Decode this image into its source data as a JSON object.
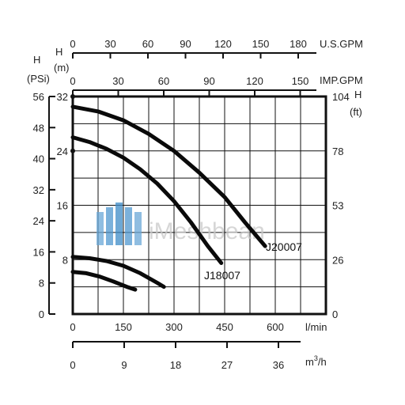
{
  "chart_data": {
    "type": "line",
    "xlabel": "l/min",
    "x_ticks": [
      "0",
      "150",
      "300",
      "450",
      "600"
    ],
    "xlim": [
      0,
      750
    ],
    "ylim_m": [
      0,
      32
    ],
    "secondary_x_axes": [
      {
        "unit": "m3/h",
        "ticks": [
          "0",
          "9",
          "18",
          "27",
          "36"
        ]
      },
      {
        "unit": "U.S.GPM",
        "ticks": [
          "0",
          "30",
          "60",
          "90",
          "120",
          "150",
          "180"
        ]
      },
      {
        "unit": "IMP.GPM",
        "ticks": [
          "0",
          "30",
          "60",
          "90",
          "120",
          "150"
        ]
      }
    ],
    "left_axes": [
      {
        "title_top": "H",
        "title_bottom": "(PSi)",
        "ticks": [
          "0",
          "8",
          "16",
          "24",
          "32",
          "40",
          "48",
          "56"
        ]
      },
      {
        "title_top": "H",
        "title_bottom": "(m)",
        "ticks": [
          "8",
          "16",
          "24",
          "32"
        ]
      }
    ],
    "right_axis": {
      "title_top": "H",
      "title_bottom": "(ft)",
      "ticks": [
        "0",
        "26",
        "53",
        "78",
        "104"
      ]
    },
    "grid": true,
    "series": [
      {
        "name": "J20007",
        "x": [
          0,
          75,
          150,
          225,
          300,
          375,
          450,
          510,
          570
        ],
        "y": [
          30.5,
          29.8,
          28.5,
          26.5,
          24,
          20.8,
          17.2,
          13.5,
          10
        ]
      },
      {
        "name": "J18007",
        "x": [
          0,
          50,
          100,
          150,
          200,
          250,
          300,
          350,
          400,
          440
        ],
        "y": [
          26,
          25.3,
          24.3,
          23,
          21.3,
          19.2,
          16.6,
          13.5,
          10,
          7.5
        ]
      },
      {
        "name": "",
        "x": [
          0,
          50,
          100,
          150,
          200,
          250,
          270
        ],
        "y": [
          8.4,
          8.2,
          7.8,
          7.1,
          6,
          4.6,
          4
        ]
      },
      {
        "name": "",
        "x": [
          0,
          40,
          80,
          120,
          160,
          185
        ],
        "y": [
          6.2,
          6,
          5.5,
          4.8,
          4,
          3.6
        ]
      }
    ],
    "watermark": "iMeshbean"
  }
}
